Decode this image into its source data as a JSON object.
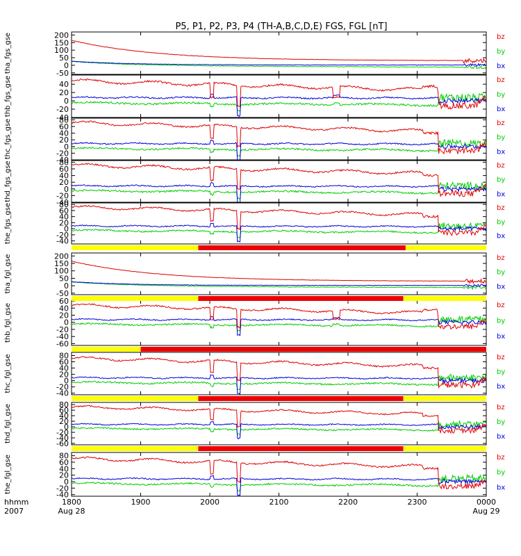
{
  "chart_data": {
    "type": "line",
    "title": "P5, P1, P2, P3, P4 (TH-A,B,C,D,E) FGS, FGL [nT]",
    "colors": {
      "bz": "#e00000",
      "by": "#00cc00",
      "bx": "#0000e0",
      "bar_yellow": "#ffff00",
      "bar_red": "#ee0000"
    },
    "x_axis": {
      "row_label_1": "hhmm",
      "row_label_2": "2007",
      "ticks": [
        {
          "label": "1800",
          "date": "Aug 28",
          "t": 0
        },
        {
          "label": "1900",
          "date": "",
          "t": 60
        },
        {
          "label": "2000",
          "date": "",
          "t": 120
        },
        {
          "label": "2100",
          "date": "",
          "t": 180
        },
        {
          "label": "2200",
          "date": "",
          "t": 240
        },
        {
          "label": "2300",
          "date": "",
          "t": 300
        },
        {
          "label": "0000",
          "date": "Aug 29",
          "t": 360
        }
      ],
      "range_minutes": [
        0,
        360
      ]
    },
    "panels": [
      {
        "ylabel": "tha_fgs_gse",
        "ylim": [
          -60,
          220
        ],
        "ticks": [
          -50,
          0,
          50,
          100,
          150,
          200
        ],
        "tick_labels": [
          "-50",
          "0",
          "50",
          "100",
          "150",
          "200"
        ],
        "kind": "a",
        "legend": [
          "bz",
          "by",
          "bx"
        ]
      },
      {
        "ylabel": "thb_fgs_gse",
        "ylim": [
          -40,
          62
        ],
        "ticks": [
          -40,
          -20,
          0,
          20,
          40
        ],
        "tick_labels": [
          "-40",
          "-20",
          "0",
          "20",
          "40"
        ],
        "kind": "b",
        "legend": [
          "bz",
          "by",
          "bx"
        ]
      },
      {
        "ylabel": "thc_fgs_gse",
        "ylim": [
          -40,
          85
        ],
        "ticks": [
          -40,
          -20,
          0,
          20,
          40,
          60,
          80
        ],
        "tick_labels": [
          "-40",
          "-20",
          "0",
          "20",
          "40",
          "60",
          "80"
        ],
        "kind": "c",
        "legend": [
          "bz",
          "by",
          "bx"
        ]
      },
      {
        "ylabel": "thd_fgs_gse",
        "ylim": [
          -40,
          85
        ],
        "ticks": [
          -40,
          -20,
          0,
          20,
          40,
          60,
          80
        ],
        "tick_labels": [
          "-40",
          "-20",
          "0",
          "20",
          "40",
          "60",
          "80"
        ],
        "kind": "c",
        "legend": [
          "bz",
          "by",
          "bx"
        ]
      },
      {
        "ylabel": "the_fgs_gse",
        "ylim": [
          -50,
          85
        ],
        "ticks": [
          -40,
          -20,
          0,
          20,
          40,
          60,
          80
        ],
        "tick_labels": [
          "-40",
          "-20",
          "0",
          "20",
          "40",
          "60",
          "80"
        ],
        "kind": "c",
        "legend": [
          "bz",
          "by",
          "bx"
        ]
      },
      {
        "ylabel": "tha_fgl_gse",
        "ylim": [
          -60,
          220
        ],
        "ticks": [
          -50,
          0,
          50,
          100,
          150,
          200
        ],
        "tick_labels": [
          "-50",
          "0",
          "50",
          "100",
          "150",
          "200"
        ],
        "kind": "a",
        "legend": [
          "bz",
          "by",
          "bx"
        ]
      },
      {
        "ylabel": "thb_fgl_gse",
        "ylim": [
          -65,
          62
        ],
        "ticks": [
          -60,
          -40,
          -20,
          0,
          20,
          40,
          60
        ],
        "tick_labels": [
          "-60",
          "-40",
          "-20",
          "0",
          "20",
          "40",
          "60"
        ],
        "kind": "b",
        "legend": [
          "bz",
          "by",
          "bx"
        ]
      },
      {
        "ylabel": "thc_fgl_gse",
        "ylim": [
          -45,
          90
        ],
        "ticks": [
          -40,
          -20,
          0,
          20,
          40,
          60,
          80
        ],
        "tick_labels": [
          "-40",
          "-20",
          "0",
          "20",
          "40",
          "60",
          "80"
        ],
        "kind": "c",
        "legend": [
          "bz",
          "by",
          "bx"
        ]
      },
      {
        "ylabel": "thd_fgl_gse",
        "ylim": [
          -65,
          88
        ],
        "ticks": [
          -60,
          -40,
          -20,
          0,
          20,
          40,
          60,
          80
        ],
        "tick_labels": [
          "-60",
          "-40",
          "-20",
          "0",
          "20",
          "40",
          "60",
          "80"
        ],
        "kind": "c",
        "legend": [
          "bz",
          "by",
          "bx"
        ]
      },
      {
        "ylabel": "the_fgl_gse",
        "ylim": [
          -45,
          90
        ],
        "ticks": [
          -40,
          -20,
          0,
          20,
          40,
          60,
          80
        ],
        "tick_labels": [
          "-40",
          "-20",
          "0",
          "20",
          "40",
          "60",
          "80"
        ],
        "kind": "c",
        "legend": [
          "bz",
          "by",
          "bx"
        ]
      }
    ],
    "mode_bars": [
      {
        "after_panel": 4,
        "segments": [
          {
            "from": 0,
            "to": 110,
            "color": "yellow"
          },
          {
            "from": 110,
            "to": 290,
            "color": "red"
          },
          {
            "from": 290,
            "to": 360,
            "color": "yellow"
          }
        ]
      },
      {
        "after_panel": 5,
        "segments": [
          {
            "from": 0,
            "to": 110,
            "color": "yellow"
          },
          {
            "from": 110,
            "to": 288,
            "color": "red"
          },
          {
            "from": 288,
            "to": 360,
            "color": "yellow"
          }
        ]
      },
      {
        "after_panel": 6,
        "segments": [
          {
            "from": 0,
            "to": 60,
            "color": "yellow"
          },
          {
            "from": 60,
            "to": 360,
            "color": "red"
          }
        ]
      },
      {
        "after_panel": 7,
        "segments": [
          {
            "from": 0,
            "to": 110,
            "color": "yellow"
          },
          {
            "from": 110,
            "to": 288,
            "color": "red"
          },
          {
            "from": 288,
            "to": 360,
            "color": "yellow"
          }
        ]
      },
      {
        "after_panel": 8,
        "segments": [
          {
            "from": 0,
            "to": 110,
            "color": "yellow"
          },
          {
            "from": 110,
            "to": 288,
            "color": "red"
          },
          {
            "from": 288,
            "to": 360,
            "color": "yellow"
          }
        ]
      }
    ]
  }
}
